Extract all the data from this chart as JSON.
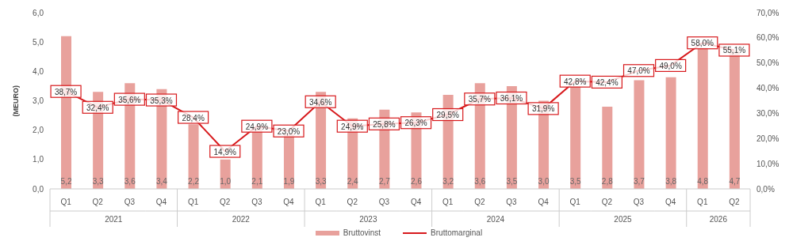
{
  "chart_data": {
    "type": "bar",
    "categories": [
      "Q1",
      "Q2",
      "Q3",
      "Q4",
      "Q1",
      "Q2",
      "Q3",
      "Q4",
      "Q1",
      "Q2",
      "Q3",
      "Q4",
      "Q1",
      "Q2",
      "Q3",
      "Q4",
      "Q1",
      "Q2",
      "Q3",
      "Q4",
      "Q1",
      "Q2"
    ],
    "annotations": [
      "2021",
      "2022",
      "2023",
      "2024",
      "2025",
      "2026"
    ],
    "ylabel": "(MEURO)",
    "series": [
      {
        "name": "Bruttovinst",
        "color": "#e8a19c",
        "values": [
          5.2,
          3.3,
          3.6,
          3.4,
          2.2,
          1.0,
          2.1,
          1.9,
          3.3,
          2.4,
          2.7,
          2.6,
          3.2,
          3.6,
          3.5,
          3.0,
          3.5,
          2.8,
          3.7,
          3.8,
          4.8,
          4.7
        ],
        "value_labels": [
          "5,2",
          "3,3",
          "3,6",
          "3,4",
          "2,2",
          "1,0",
          "2,1",
          "1,9",
          "3,3",
          "2,4",
          "2,7",
          "2,6",
          "3,2",
          "3,6",
          "3,5",
          "3,0",
          "3,5",
          "2,8",
          "3,7",
          "3,8",
          "4,8",
          "4,7"
        ]
      },
      {
        "name": "Bruttomarginal",
        "type": "line",
        "marker": "square",
        "axis": "y2",
        "color": "#d7191c",
        "values": [
          38.7,
          32.4,
          35.6,
          35.3,
          28.4,
          14.9,
          24.9,
          23.0,
          34.6,
          24.9,
          25.8,
          26.3,
          29.5,
          35.7,
          36.1,
          31.9,
          42.8,
          42.4,
          47.0,
          49.0,
          58.0,
          55.1
        ],
        "value_labels": [
          "38,7%",
          "32,4%",
          "35,6%",
          "35,3%",
          "28,4%",
          "14,9%",
          "24,9%",
          "23,0%",
          "34,6%",
          "24,9%",
          "25,8%",
          "26,3%",
          "29,5%",
          "35,7%",
          "36,1%",
          "31,9%",
          "42,8%",
          "42,4%",
          "47,0%",
          "49,0%",
          "58,0%",
          "55,1%"
        ]
      }
    ],
    "ylim": [
      0,
      6
    ],
    "yticks": [
      {
        "value": 0,
        "label": "0,0"
      },
      {
        "value": 1,
        "label": "1,0"
      },
      {
        "value": 2,
        "label": "2,0"
      },
      {
        "value": 3,
        "label": "3,0"
      },
      {
        "value": 4,
        "label": "4,0"
      },
      {
        "value": 5,
        "label": "5,0"
      },
      {
        "value": 6,
        "label": "6,0"
      }
    ],
    "y2lim": [
      0,
      70
    ],
    "y2ticks": [
      {
        "value": 0,
        "label": "0,0%"
      },
      {
        "value": 10,
        "label": "10,0%"
      },
      {
        "value": 20,
        "label": "20,0%"
      },
      {
        "value": 30,
        "label": "30,0%"
      },
      {
        "value": 40,
        "label": "40,0%"
      },
      {
        "value": 50,
        "label": "50,0%"
      },
      {
        "value": 60,
        "label": "60,0%"
      },
      {
        "value": 70,
        "label": "70,0%"
      }
    ],
    "grid": false,
    "legend": "bottom",
    "line_style": "solid"
  }
}
